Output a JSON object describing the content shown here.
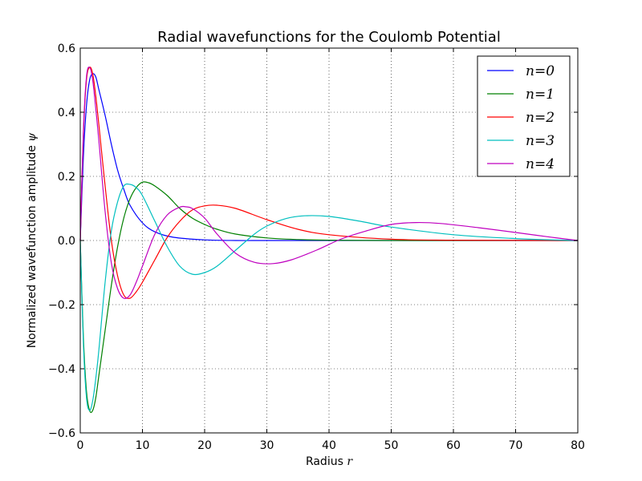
{
  "chart_data": {
    "type": "line",
    "title": "Radial wavefunctions for the Coulomb Potential",
    "xlabel_text": "Radius",
    "xlabel_symbol": "r",
    "ylabel_text": "Normalized wavefunction amplitude",
    "ylabel_symbol": "ψ",
    "xlim": [
      0,
      80
    ],
    "ylim": [
      -0.6,
      0.6
    ],
    "xticks": [
      0,
      10,
      20,
      30,
      40,
      50,
      60,
      70,
      80
    ],
    "yticks": [
      -0.6,
      -0.4,
      -0.2,
      0.0,
      0.2,
      0.4,
      0.6
    ],
    "xtick_labels": [
      "0",
      "10",
      "20",
      "30",
      "40",
      "50",
      "60",
      "70",
      "80"
    ],
    "ytick_labels": [
      "−0.6",
      "−0.4",
      "−0.2",
      "0.0",
      "0.2",
      "0.4",
      "0.6"
    ],
    "grid": true,
    "legend_position": "top-right",
    "series": [
      {
        "name": "n=0",
        "color": "#0000ff",
        "x": [
          0,
          0.5,
          1,
          1.5,
          2,
          2.5,
          3,
          4,
          5,
          6,
          7,
          8,
          10,
          12,
          15,
          20,
          25,
          30,
          40,
          80
        ],
        "y": [
          0,
          0.26,
          0.42,
          0.5,
          0.52,
          0.51,
          0.47,
          0.39,
          0.3,
          0.22,
          0.16,
          0.11,
          0.055,
          0.027,
          0.01,
          0.002,
          0.0,
          0.0,
          0.0,
          0.0
        ]
      },
      {
        "name": "n=1",
        "color": "#008000",
        "x": [
          0,
          0.5,
          1,
          1.5,
          2,
          2.5,
          3,
          4,
          5,
          6,
          7,
          8,
          9,
          10,
          11,
          12,
          14,
          16,
          18,
          20,
          22,
          25,
          30,
          35,
          40,
          50,
          80
        ],
        "y": [
          0,
          -0.3,
          -0.47,
          -0.53,
          -0.53,
          -0.49,
          -0.42,
          -0.28,
          -0.14,
          -0.02,
          0.07,
          0.13,
          0.165,
          0.182,
          0.18,
          0.17,
          0.14,
          0.1,
          0.07,
          0.05,
          0.035,
          0.02,
          0.008,
          0.003,
          0.001,
          0.0,
          0.0
        ]
      },
      {
        "name": "n=2",
        "color": "#ff0000",
        "x": [
          0,
          0.5,
          1,
          1.5,
          2,
          2.5,
          3,
          4,
          5,
          6,
          7,
          8,
          9,
          10,
          12,
          14,
          16,
          18,
          20,
          22,
          25,
          30,
          35,
          40,
          50,
          60,
          80
        ],
        "y": [
          0,
          0.33,
          0.5,
          0.54,
          0.52,
          0.45,
          0.36,
          0.17,
          0.0,
          -0.11,
          -0.17,
          -0.18,
          -0.16,
          -0.13,
          -0.06,
          0.01,
          0.06,
          0.095,
          0.108,
          0.11,
          0.1,
          0.065,
          0.035,
          0.018,
          0.004,
          0.001,
          0.0
        ]
      },
      {
        "name": "n=3",
        "color": "#00bfbf",
        "x": [
          0,
          0.5,
          1,
          1.5,
          2,
          2.5,
          3,
          4,
          5,
          6,
          7,
          8,
          9,
          10,
          12,
          14,
          16,
          18,
          20,
          22,
          25,
          28,
          30,
          33,
          36,
          40,
          45,
          50,
          60,
          70,
          80
        ],
        "y": [
          0,
          -0.32,
          -0.49,
          -0.53,
          -0.5,
          -0.43,
          -0.34,
          -0.13,
          0.03,
          0.12,
          0.17,
          0.175,
          0.165,
          0.14,
          0.06,
          -0.02,
          -0.08,
          -0.105,
          -0.1,
          -0.08,
          -0.03,
          0.02,
          0.045,
          0.068,
          0.077,
          0.075,
          0.06,
          0.042,
          0.018,
          0.006,
          0.0
        ]
      },
      {
        "name": "n=4",
        "color": "#bf00bf",
        "x": [
          0,
          0.5,
          1,
          1.5,
          2,
          2.5,
          3,
          4,
          5,
          6,
          7,
          8,
          9,
          10,
          12,
          14,
          16,
          17,
          18,
          20,
          22,
          25,
          28,
          31,
          34,
          38,
          42,
          46,
          50,
          54,
          58,
          64,
          70,
          75,
          80
        ],
        "y": [
          0,
          0.34,
          0.51,
          0.54,
          0.5,
          0.41,
          0.31,
          0.09,
          -0.07,
          -0.15,
          -0.18,
          -0.17,
          -0.13,
          -0.08,
          0.02,
          0.08,
          0.104,
          0.105,
          0.1,
          0.07,
          0.02,
          -0.04,
          -0.068,
          -0.072,
          -0.06,
          -0.03,
          0.005,
          0.03,
          0.05,
          0.056,
          0.053,
          0.04,
          0.025,
          0.012,
          0.0
        ]
      }
    ]
  }
}
